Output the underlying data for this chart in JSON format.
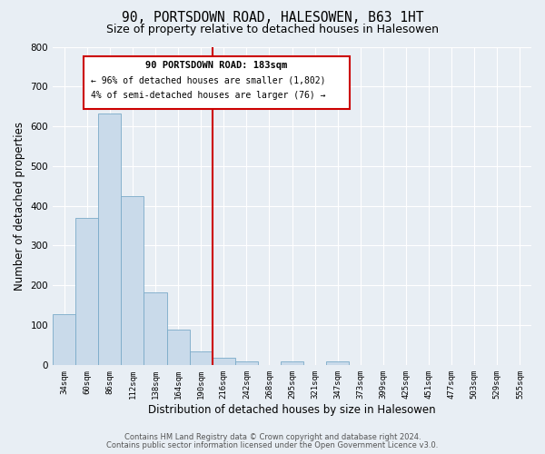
{
  "title": "90, PORTSDOWN ROAD, HALESOWEN, B63 1HT",
  "subtitle": "Size of property relative to detached houses in Halesowen",
  "xlabel": "Distribution of detached houses by size in Halesowen",
  "ylabel": "Number of detached properties",
  "bar_labels": [
    "34sqm",
    "60sqm",
    "86sqm",
    "112sqm",
    "138sqm",
    "164sqm",
    "190sqm",
    "216sqm",
    "242sqm",
    "268sqm",
    "295sqm",
    "321sqm",
    "347sqm",
    "373sqm",
    "399sqm",
    "425sqm",
    "451sqm",
    "477sqm",
    "503sqm",
    "529sqm",
    "555sqm"
  ],
  "bar_values": [
    128,
    370,
    632,
    425,
    183,
    88,
    35,
    18,
    8,
    0,
    8,
    0,
    8,
    0,
    0,
    0,
    0,
    0,
    0,
    0,
    0
  ],
  "bar_color": "#c9daea",
  "bar_edgecolor": "#7aaac8",
  "vline_color": "#cc0000",
  "annotation_title": "90 PORTSDOWN ROAD: 183sqm",
  "annotation_line1": "← 96% of detached houses are smaller (1,802)",
  "annotation_line2": "4% of semi-detached houses are larger (76) →",
  "annotation_box_edgecolor": "#cc0000",
  "ylim": [
    0,
    800
  ],
  "yticks": [
    0,
    100,
    200,
    300,
    400,
    500,
    600,
    700,
    800
  ],
  "footer1": "Contains HM Land Registry data © Crown copyright and database right 2024.",
  "footer2": "Contains public sector information licensed under the Open Government Licence v3.0.",
  "bg_color": "#e8eef4",
  "plot_bg_color": "#e8eef4",
  "grid_color": "#ffffff",
  "title_fontsize": 10.5,
  "subtitle_fontsize": 9,
  "tick_fontsize": 6.5,
  "axis_label_fontsize": 8.5
}
